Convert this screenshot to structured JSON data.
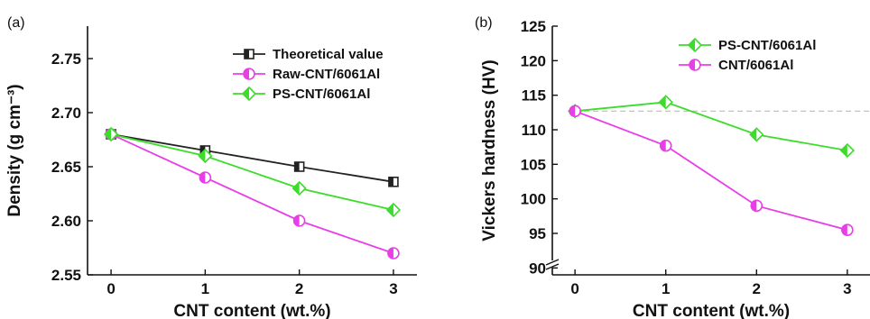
{
  "chart_data": [
    {
      "panel_label": "(a)",
      "type": "line",
      "xlabel": "CNT content (wt.%)",
      "ylabel": "Density (g cm⁻³)",
      "xlim": [
        -0.25,
        3.25
      ],
      "ylim": [
        2.55,
        2.78
      ],
      "x_ticks": [
        "0",
        "1",
        "2",
        "3"
      ],
      "y_ticks": [
        "2.55",
        "2.60",
        "2.65",
        "2.70",
        "2.75"
      ],
      "legend_position": "top-right",
      "grid": false,
      "x": [
        0,
        1,
        2,
        3
      ],
      "series": [
        {
          "name": "Theoretical value",
          "values": [
            2.68,
            2.665,
            2.65,
            2.636
          ],
          "color": "#222222",
          "marker": "square-half"
        },
        {
          "name": "Raw-CNT/6061Al",
          "values": [
            2.68,
            2.64,
            2.6,
            2.57
          ],
          "color": "#e83ee8",
          "marker": "circle-half"
        },
        {
          "name": "PS-CNT/6061Al",
          "values": [
            2.68,
            2.66,
            2.63,
            2.61
          ],
          "color": "#3cdc2a",
          "marker": "diamond-half"
        }
      ]
    },
    {
      "panel_label": "(b)",
      "type": "line",
      "xlabel": "CNT content (wt.%)",
      "ylabel": "Vickers hardness (HV)",
      "xlim": [
        -0.25,
        3.25
      ],
      "ylim": [
        89,
        125
      ],
      "axis_break": true,
      "x_ticks": [
        "0",
        "1",
        "2",
        "3"
      ],
      "y_ticks": [
        "90",
        "95",
        "100",
        "105",
        "110",
        "115",
        "120",
        "125"
      ],
      "legend_position": "top-right",
      "grid": false,
      "reference_line": {
        "y": 112.7,
        "style": "dashed",
        "color": "#bbbbbb"
      },
      "x": [
        0,
        1,
        2,
        3
      ],
      "series": [
        {
          "name": "PS-CNT/6061Al",
          "values": [
            112.7,
            114.0,
            109.3,
            107.0
          ],
          "color": "#3cdc2a",
          "marker": "diamond-half"
        },
        {
          "name": "CNT/6061Al",
          "values": [
            112.7,
            107.7,
            99.0,
            95.5
          ],
          "color": "#e83ee8",
          "marker": "circle-half"
        }
      ]
    }
  ]
}
